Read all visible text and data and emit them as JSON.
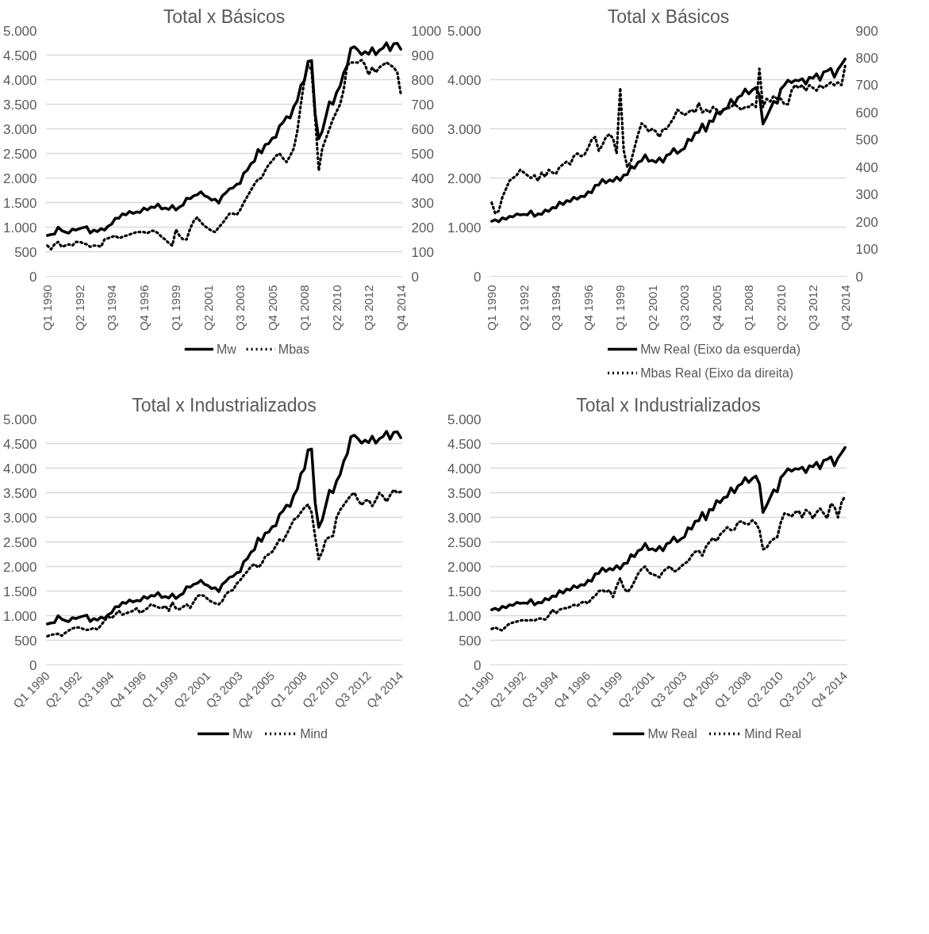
{
  "chart_data": [
    {
      "type": "line",
      "title": "Total x Básicos",
      "grid": "y",
      "legend": "bottom",
      "categories": [
        "Q1 1990",
        null,
        null,
        null,
        null,
        null,
        null,
        null,
        null,
        "Q2 1992",
        null,
        null,
        null,
        null,
        null,
        null,
        null,
        null,
        "Q3 1994",
        null,
        null,
        null,
        null,
        null,
        null,
        null,
        null,
        "Q4 1996",
        null,
        null,
        null,
        null,
        null,
        null,
        null,
        null,
        "Q1 1999",
        null,
        null,
        null,
        null,
        null,
        null,
        null,
        null,
        "Q2 2001",
        null,
        null,
        null,
        null,
        null,
        null,
        null,
        null,
        "Q3 2003",
        null,
        null,
        null,
        null,
        null,
        null,
        null,
        null,
        "Q4 2005",
        null,
        null,
        null,
        null,
        null,
        null,
        null,
        null,
        "Q1 2008",
        null,
        null,
        null,
        null,
        null,
        null,
        null,
        null,
        "Q2 2010",
        null,
        null,
        null,
        null,
        null,
        null,
        null,
        null,
        "Q3 2012",
        null,
        null,
        null,
        null,
        null,
        null,
        null,
        null,
        "Q4 2014"
      ],
      "ylim": [
        0,
        5000
      ],
      "yticks": [
        0,
        500,
        {
          "value": 1000,
          "label": "1.000"
        },
        {
          "value": 1500,
          "label": "1.500"
        },
        {
          "value": 2000,
          "label": "2.000"
        },
        {
          "value": 2500,
          "label": "2.500"
        },
        {
          "value": 3000,
          "label": "3.000"
        },
        {
          "value": 3500,
          "label": "3.500"
        },
        {
          "value": 4000,
          "label": "4.000"
        },
        {
          "value": 4500,
          "label": "4.500"
        },
        {
          "value": 5000,
          "label": "5.000"
        }
      ],
      "y2lim": [
        0,
        1000
      ],
      "y2ticks": [
        0,
        100,
        200,
        300,
        400,
        500,
        600,
        700,
        800,
        900,
        1000
      ],
      "series": [
        {
          "name": "Mw",
          "color": "#000000",
          "line_style": "solid",
          "values": [
            830,
            850,
            860,
            1000,
            930,
            900,
            880,
            960,
            940,
            970,
            990,
            1010,
            880,
            940,
            910,
            970,
            940,
            1020,
            1060,
            1180,
            1180,
            1270,
            1250,
            1320,
            1280,
            1310,
            1300,
            1390,
            1350,
            1410,
            1400,
            1470,
            1370,
            1390,
            1360,
            1440,
            1350,
            1410,
            1450,
            1590,
            1580,
            1640,
            1660,
            1720,
            1640,
            1610,
            1550,
            1570,
            1490,
            1640,
            1700,
            1780,
            1800,
            1870,
            1890,
            2100,
            2160,
            2290,
            2340,
            2580,
            2510,
            2680,
            2700,
            2810,
            2830,
            3060,
            3130,
            3250,
            3220,
            3450,
            3570,
            3890,
            3980,
            4370,
            4390,
            3300,
            2800,
            2950,
            3250,
            3550,
            3500,
            3740,
            3870,
            4140,
            4290,
            4640,
            4670,
            4600,
            4510,
            4570,
            4520,
            4650,
            4510,
            4600,
            4640,
            4750,
            4590,
            4730,
            4740,
            4620
          ]
        },
        {
          "name": "Mbas",
          "color": "#000000",
          "line_style": "dotted",
          "axis": "y2",
          "values": [
            125,
            110,
            130,
            140,
            120,
            125,
            130,
            125,
            140,
            140,
            135,
            130,
            120,
            125,
            125,
            120,
            150,
            155,
            160,
            165,
            155,
            160,
            165,
            170,
            175,
            180,
            180,
            180,
            175,
            185,
            185,
            175,
            160,
            150,
            135,
            125,
            190,
            165,
            150,
            150,
            195,
            225,
            240,
            220,
            205,
            195,
            185,
            180,
            200,
            215,
            235,
            255,
            255,
            250,
            270,
            300,
            325,
            350,
            375,
            395,
            400,
            430,
            455,
            470,
            490,
            500,
            480,
            465,
            490,
            520,
            590,
            700,
            800,
            860,
            840,
            650,
            430,
            520,
            560,
            600,
            640,
            670,
            700,
            760,
            860,
            870,
            870,
            870,
            880,
            860,
            820,
            850,
            830,
            850,
            860,
            870,
            860,
            850,
            830,
            740
          ]
        }
      ]
    },
    {
      "type": "line",
      "title": "Total x Básicos",
      "grid": "y",
      "legend": "bottom",
      "categories": [
        "Q1 1990",
        null,
        null,
        null,
        null,
        null,
        null,
        null,
        null,
        "Q2 1992",
        null,
        null,
        null,
        null,
        null,
        null,
        null,
        null,
        "Q3 1994",
        null,
        null,
        null,
        null,
        null,
        null,
        null,
        null,
        "Q4 1996",
        null,
        null,
        null,
        null,
        null,
        null,
        null,
        null,
        "Q1 1999",
        null,
        null,
        null,
        null,
        null,
        null,
        null,
        null,
        "Q2 2001",
        null,
        null,
        null,
        null,
        null,
        null,
        null,
        null,
        "Q3 2003",
        null,
        null,
        null,
        null,
        null,
        null,
        null,
        null,
        "Q4 2005",
        null,
        null,
        null,
        null,
        null,
        null,
        null,
        null,
        "Q1 2008",
        null,
        null,
        null,
        null,
        null,
        null,
        null,
        null,
        "Q2 2010",
        null,
        null,
        null,
        null,
        null,
        null,
        null,
        null,
        "Q3 2012",
        null,
        null,
        null,
        null,
        null,
        null,
        null,
        null,
        "Q4 2014"
      ],
      "ylim": [
        0,
        5000
      ],
      "yticks": [
        0,
        {
          "value": 1000,
          "label": "1.000"
        },
        {
          "value": 2000,
          "label": "2.000"
        },
        {
          "value": 3000,
          "label": "3.000"
        },
        {
          "value": 4000,
          "label": "4.000"
        },
        {
          "value": 5000,
          "label": "5.000"
        }
      ],
      "y2lim": [
        0,
        900
      ],
      "y2ticks": [
        0,
        100,
        200,
        300,
        400,
        500,
        600,
        700,
        800,
        900
      ],
      "series": [
        {
          "name": "Mw Real (Eixo da esquerda)",
          "color": "#000000",
          "line_style": "solid",
          "values": [
            1120,
            1150,
            1110,
            1190,
            1160,
            1220,
            1210,
            1270,
            1250,
            1260,
            1250,
            1330,
            1220,
            1270,
            1260,
            1350,
            1320,
            1400,
            1390,
            1510,
            1460,
            1540,
            1520,
            1610,
            1570,
            1630,
            1620,
            1720,
            1700,
            1850,
            1860,
            1970,
            1900,
            1960,
            1930,
            2020,
            1950,
            2060,
            2070,
            2240,
            2200,
            2320,
            2350,
            2470,
            2340,
            2360,
            2320,
            2410,
            2320,
            2460,
            2490,
            2600,
            2500,
            2560,
            2600,
            2790,
            2760,
            2920,
            2930,
            3100,
            2950,
            3160,
            3150,
            3340,
            3300,
            3400,
            3420,
            3600,
            3500,
            3640,
            3680,
            3810,
            3710,
            3790,
            3840,
            3680,
            3100,
            3240,
            3400,
            3560,
            3520,
            3810,
            3890,
            3990,
            3940,
            3990,
            3980,
            4020,
            3910,
            4050,
            4030,
            4120,
            3990,
            4160,
            4180,
            4230,
            4050,
            4210,
            4310,
            4420
          ]
        },
        {
          "name": "Mbas Real (Eixo da direita)",
          "color": "#000000",
          "line_style": "dotted",
          "axis": "y2",
          "values": [
            270,
            230,
            240,
            290,
            320,
            350,
            360,
            370,
            390,
            380,
            370,
            360,
            370,
            350,
            380,
            365,
            390,
            380,
            375,
            400,
            410,
            420,
            410,
            440,
            450,
            440,
            445,
            470,
            500,
            510,
            460,
            480,
            510,
            520,
            505,
            450,
            690,
            460,
            400,
            420,
            470,
            520,
            560,
            550,
            530,
            540,
            530,
            510,
            540,
            540,
            560,
            580,
            610,
            600,
            590,
            600,
            610,
            600,
            635,
            600,
            610,
            600,
            620,
            610,
            600,
            610,
            615,
            620,
            630,
            620,
            610,
            620,
            620,
            630,
            620,
            760,
            620,
            650,
            640,
            660,
            650,
            650,
            630,
            630,
            680,
            700,
            690,
            700,
            680,
            700,
            690,
            680,
            700,
            690,
            700,
            710,
            700,
            710,
            700,
            770
          ]
        }
      ]
    },
    {
      "type": "line",
      "title": "Total x Industrializados",
      "grid": "y",
      "legend": "bottom",
      "categories": [
        "Q1 1990",
        null,
        null,
        null,
        null,
        null,
        null,
        null,
        null,
        "Q2 1992",
        null,
        null,
        null,
        null,
        null,
        null,
        null,
        null,
        "Q3 1994",
        null,
        null,
        null,
        null,
        null,
        null,
        null,
        null,
        "Q4 1996",
        null,
        null,
        null,
        null,
        null,
        null,
        null,
        null,
        "Q1 1999",
        null,
        null,
        null,
        null,
        null,
        null,
        null,
        null,
        "Q2 2001",
        null,
        null,
        null,
        null,
        null,
        null,
        null,
        null,
        "Q3 2003",
        null,
        null,
        null,
        null,
        null,
        null,
        null,
        null,
        "Q4 2005",
        null,
        null,
        null,
        null,
        null,
        null,
        null,
        null,
        "Q1 2008",
        null,
        null,
        null,
        null,
        null,
        null,
        null,
        null,
        "Q2 2010",
        null,
        null,
        null,
        null,
        null,
        null,
        null,
        null,
        "Q3 2012",
        null,
        null,
        null,
        null,
        null,
        null,
        null,
        null,
        "Q4 2014"
      ],
      "ylim": [
        0,
        5000
      ],
      "yticks": [
        0,
        500,
        {
          "value": 1000,
          "label": "1.000"
        },
        {
          "value": 1500,
          "label": "1.500"
        },
        {
          "value": 2000,
          "label": "2.000"
        },
        {
          "value": 2500,
          "label": "2.500"
        },
        {
          "value": 3000,
          "label": "3.000"
        },
        {
          "value": 3500,
          "label": "3.500"
        },
        {
          "value": 4000,
          "label": "4.000"
        },
        {
          "value": 4500,
          "label": "4.500"
        },
        {
          "value": 5000,
          "label": "5.000"
        }
      ],
      "series": [
        {
          "name": "Mw",
          "color": "#000000",
          "line_style": "solid",
          "values": [
            830,
            850,
            860,
            1000,
            930,
            900,
            880,
            960,
            940,
            970,
            990,
            1010,
            880,
            940,
            910,
            970,
            940,
            1020,
            1060,
            1180,
            1180,
            1270,
            1250,
            1320,
            1280,
            1310,
            1300,
            1390,
            1350,
            1410,
            1400,
            1470,
            1370,
            1390,
            1360,
            1440,
            1350,
            1410,
            1450,
            1590,
            1580,
            1640,
            1660,
            1720,
            1640,
            1610,
            1550,
            1570,
            1490,
            1640,
            1700,
            1780,
            1800,
            1870,
            1890,
            2100,
            2160,
            2290,
            2340,
            2580,
            2510,
            2680,
            2700,
            2810,
            2830,
            3060,
            3130,
            3250,
            3220,
            3450,
            3570,
            3890,
            3980,
            4370,
            4390,
            3300,
            2800,
            2950,
            3250,
            3550,
            3500,
            3740,
            3870,
            4140,
            4290,
            4640,
            4670,
            4600,
            4510,
            4570,
            4520,
            4650,
            4510,
            4600,
            4640,
            4750,
            4590,
            4730,
            4740,
            4620
          ]
        },
        {
          "name": "Mind",
          "color": "#000000",
          "line_style": "dotted",
          "values": [
            580,
            610,
            620,
            630,
            590,
            650,
            700,
            740,
            760,
            760,
            730,
            710,
            720,
            750,
            720,
            800,
            900,
            980,
            950,
            1020,
            1100,
            1020,
            1050,
            1070,
            1100,
            1150,
            1060,
            1100,
            1150,
            1230,
            1200,
            1170,
            1150,
            1200,
            1100,
            1270,
            1150,
            1130,
            1180,
            1230,
            1160,
            1280,
            1400,
            1420,
            1400,
            1330,
            1280,
            1250,
            1230,
            1300,
            1440,
            1500,
            1520,
            1650,
            1720,
            1820,
            1900,
            2000,
            2050,
            1980,
            2050,
            2200,
            2250,
            2300,
            2420,
            2550,
            2520,
            2650,
            2800,
            2950,
            3000,
            3100,
            3200,
            3260,
            3100,
            2600,
            2150,
            2300,
            2550,
            2600,
            2620,
            3000,
            3150,
            3250,
            3350,
            3450,
            3500,
            3350,
            3250,
            3340,
            3350,
            3230,
            3350,
            3500,
            3430,
            3320,
            3450,
            3560,
            3500,
            3520
          ]
        }
      ]
    },
    {
      "type": "line",
      "title": "Total x Industrializados",
      "grid": "y",
      "legend": "bottom",
      "categories": [
        "Q1 1990",
        null,
        null,
        null,
        null,
        null,
        null,
        null,
        null,
        "Q2 1992",
        null,
        null,
        null,
        null,
        null,
        null,
        null,
        null,
        "Q3 1994",
        null,
        null,
        null,
        null,
        null,
        null,
        null,
        null,
        "Q4 1996",
        null,
        null,
        null,
        null,
        null,
        null,
        null,
        null,
        "Q1 1999",
        null,
        null,
        null,
        null,
        null,
        null,
        null,
        null,
        "Q2 2001",
        null,
        null,
        null,
        null,
        null,
        null,
        null,
        null,
        "Q3 2003",
        null,
        null,
        null,
        null,
        null,
        null,
        null,
        null,
        "Q4 2005",
        null,
        null,
        null,
        null,
        null,
        null,
        null,
        null,
        "Q1 2008",
        null,
        null,
        null,
        null,
        null,
        null,
        null,
        null,
        "Q2 2010",
        null,
        null,
        null,
        null,
        null,
        null,
        null,
        null,
        "Q3 2012",
        null,
        null,
        null,
        null,
        null,
        null,
        null,
        null,
        "Q4 2014"
      ],
      "ylim": [
        0,
        5000
      ],
      "yticks": [
        0,
        500,
        {
          "value": 1000,
          "label": "1.000"
        },
        {
          "value": 1500,
          "label": "1.500"
        },
        {
          "value": 2000,
          "label": "2.000"
        },
        {
          "value": 2500,
          "label": "2.500"
        },
        {
          "value": 3000,
          "label": "3.000"
        },
        {
          "value": 3500,
          "label": "3.500"
        },
        {
          "value": 4000,
          "label": "4.000"
        },
        {
          "value": 4500,
          "label": "4.500"
        },
        {
          "value": 5000,
          "label": "5.000"
        }
      ],
      "series": [
        {
          "name": "Mw Real",
          "color": "#000000",
          "line_style": "solid",
          "values": [
            1120,
            1150,
            1110,
            1190,
            1160,
            1220,
            1210,
            1270,
            1250,
            1260,
            1250,
            1330,
            1220,
            1270,
            1260,
            1350,
            1320,
            1400,
            1390,
            1510,
            1460,
            1540,
            1520,
            1610,
            1570,
            1630,
            1620,
            1720,
            1700,
            1850,
            1860,
            1970,
            1900,
            1960,
            1930,
            2020,
            1950,
            2060,
            2070,
            2240,
            2200,
            2320,
            2350,
            2470,
            2340,
            2360,
            2320,
            2410,
            2320,
            2460,
            2490,
            2600,
            2500,
            2560,
            2600,
            2790,
            2760,
            2920,
            2930,
            3100,
            2950,
            3160,
            3150,
            3340,
            3300,
            3400,
            3420,
            3600,
            3500,
            3640,
            3680,
            3810,
            3710,
            3790,
            3840,
            3680,
            3100,
            3240,
            3400,
            3560,
            3520,
            3810,
            3890,
            3990,
            3940,
            3990,
            3980,
            4020,
            3910,
            4050,
            4030,
            4120,
            3990,
            4160,
            4180,
            4230,
            4050,
            4210,
            4310,
            4420
          ]
        },
        {
          "name": "Mind Real",
          "color": "#000000",
          "line_style": "dotted",
          "values": [
            730,
            760,
            720,
            700,
            780,
            840,
            860,
            880,
            900,
            910,
            900,
            910,
            900,
            940,
            940,
            920,
            1000,
            1120,
            1050,
            1120,
            1150,
            1150,
            1180,
            1220,
            1200,
            1260,
            1290,
            1250,
            1350,
            1400,
            1500,
            1520,
            1480,
            1520,
            1380,
            1600,
            1760,
            1560,
            1480,
            1560,
            1700,
            1850,
            1950,
            2000,
            1880,
            1840,
            1820,
            1780,
            1900,
            1960,
            2000,
            1900,
            1920,
            2000,
            2060,
            2100,
            2220,
            2300,
            2320,
            2220,
            2400,
            2500,
            2580,
            2520,
            2650,
            2720,
            2800,
            2740,
            2750,
            2900,
            2920,
            2870,
            2860,
            2940,
            2880,
            2750,
            2350,
            2380,
            2500,
            2560,
            2600,
            2900,
            3080,
            3060,
            3020,
            3100,
            3130,
            3000,
            3150,
            3100,
            2980,
            3100,
            3180,
            3080,
            2980,
            3280,
            3220,
            3000,
            3300,
            3440
          ]
        }
      ]
    }
  ]
}
